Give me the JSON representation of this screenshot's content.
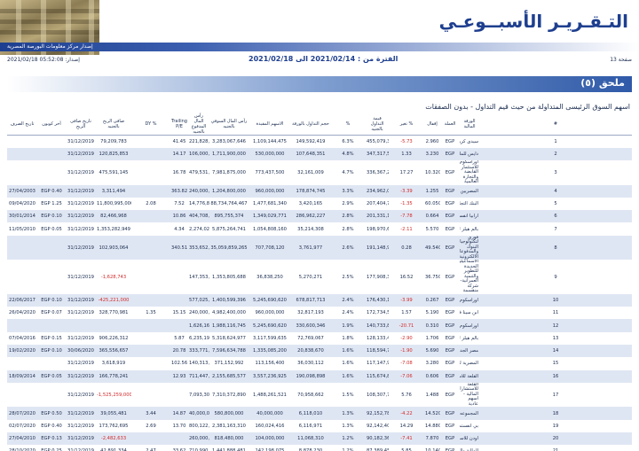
{
  "header": {
    "title": "التـقـريـر الأسبــوعـي",
    "subtitle": "إصدار مركز معلومات البورصة المصرية"
  },
  "meta": {
    "page_label": "صفحة 13",
    "period": "الفترة من : 2021/02/14 الى 2021/02/18",
    "issued": "إصدار: 05:52:08 2021/02/18"
  },
  "section": {
    "title": "ملحق (٥)"
  },
  "table": {
    "title": "اسهم السوق الرئيسى المتداولة من حيث قيم التداول - بدون الصفقات",
    "headers": [
      "#",
      "الورقة المالية",
      "العملة",
      "إقفال",
      "تغير %",
      "قيمة التداول بالجنيه",
      "%",
      "حجم التداول بالورقة",
      "الاسهم المقيدة",
      "رأس المال السوقي بالجنيه",
      "رأس المال المدفوع بالجنيه",
      "Trailing P/E",
      "DY %",
      "صافى الربح بالجنيه",
      "تاريخ صافى الربح",
      "أخر كوبون",
      "تاريخ الصرف"
    ],
    "rows": [
      [
        "1",
        "سيدى كرير للبتروكيماويات",
        "EGP",
        "2.960",
        "-5.73",
        "455,079,335",
        "6.3%",
        "149,592,419",
        "1,109,144,475",
        "3,283,067,646",
        "221,828,895",
        "41.45",
        "",
        "79,209,783",
        "31/12/2019",
        "",
        ""
      ],
      [
        "2",
        "دايس للملابس الجاهزة",
        "EGP",
        "3.230",
        "1.33",
        "347,317,567",
        "4.8%",
        "107,648,351",
        "530,000,000",
        "1,711,900,000",
        "106,000,000",
        "14.17",
        "",
        "120,825,853",
        "31/12/2019",
        "",
        ""
      ],
      [
        "3",
        "اوراسكوم للاستثمار القابضة والتجارة العالمية",
        "EGP",
        "10.320",
        "17.27",
        "336,367,225",
        "4.7%",
        "32,161,009",
        "773,437,500",
        "7,981,875,000",
        "479,531,250",
        "16.78",
        "",
        "475,591,145",
        "31/12/2019",
        "",
        ""
      ],
      [
        "4",
        "المصريين للاسكان والتنمية والتعمير",
        "EGP",
        "1.255",
        "-3.39",
        "234,962,023",
        "3.3%",
        "178,874,745",
        "960,000,000",
        "1,204,800,000",
        "240,000,000",
        "363.82",
        "",
        "3,311,494",
        "31/12/2019",
        "EGP 0.40",
        "27/04/2003"
      ],
      [
        "5",
        "البنك التجاري الدولي (مصر)",
        "EGP",
        "60.050",
        "-1.35",
        "207,404,771",
        "2.9%",
        "3,420,165",
        "1,477,681,340",
        "88,734,764,467",
        "14,776,813,400",
        "7.52",
        "2.08",
        "11,800,995,000",
        "31/12/2019",
        "EGP 1.25",
        "09/04/2020"
      ],
      [
        "6",
        "ارابيا انفستمنتس هولدنج",
        "EGP",
        "0.664",
        "-7.78",
        "201,331,175",
        "2.8%",
        "286,962,227",
        "1,349,029,771",
        "895,755,374",
        "404,708,753",
        "10.86",
        "",
        "82,466,968",
        "31/12/2019",
        "EGP 0.10",
        "30/01/2014"
      ],
      [
        "7",
        "بالم هيلز للتعمير",
        "EGP",
        "5.570",
        "-2.11",
        "198,970,632",
        "2.8%",
        "35,214,308",
        "1,054,808,160",
        "5,875,264,741",
        "2,274,025,400",
        "4.34",
        "",
        "1,353,282,949",
        "31/12/2019",
        "EGP 0.05",
        "11/05/2010"
      ],
      [
        "8",
        "فوري لتكنولوجيا البنوك والمدفوعات الالكترونية",
        "EGP",
        "49.540",
        "0.28",
        "191,148,914",
        "2.6%",
        "3,761,977",
        "707,708,120",
        "35,059,859,265",
        "353,652,060",
        "340.51",
        "",
        "102,903,064",
        "31/12/2019",
        "",
        ""
      ],
      [
        "9",
        "الاسماعيلية الجديدة للتطوير والتنمية العمرانية-شركة منقسمة",
        "EGP",
        "36.750",
        "16.52",
        "177,908,340",
        "2.5%",
        "5,270,271",
        "36,838,250",
        "1,353,805,688",
        "147,353,000",
        "",
        "",
        "-1,628,743",
        "31/12/2019",
        "",
        ""
      ],
      [
        "10",
        "اوراسكوم للاستثمار القابضة",
        "EGP",
        "0.267",
        "-3.99",
        "176,430,149",
        "2.4%",
        "678,817,713",
        "5,245,690,620",
        "1,400,599,396",
        "577,025,968",
        "",
        "",
        "-425,221,000",
        "31/12/2019",
        "EGP 0.10",
        "22/06/2017"
      ],
      [
        "11",
        "ابن سينا فارما",
        "EGP",
        "5.190",
        "1.57",
        "172,734,574",
        "2.4%",
        "32,817,193",
        "960,000,000",
        "4,982,400,000",
        "240,000,000",
        "15.15",
        "1.35",
        "328,770,981",
        "31/12/2019",
        "EGP 0.07",
        "26/04/2020"
      ],
      [
        "12",
        "اوراسكوم المالية القابضة",
        "EGP",
        "0.310",
        "-20.71",
        "140,733,848",
        "1.9%",
        "330,600,346",
        "5,245,690,620",
        "1,988,116,745",
        "1,626,164,092",
        "",
        "",
        "",
        "",
        "",
        ""
      ],
      [
        "13",
        "بالم هيلز للتعمير",
        "EGP",
        "1.706",
        "-2.90",
        "128,133,406",
        "1.8%",
        "72,769,067",
        "3,117,599,635",
        "5,318,624,977",
        "6,235,199,270",
        "5.87",
        "",
        "906,226,312",
        "31/12/2019",
        "EGP 0.15",
        "07/04/2016"
      ],
      [
        "14",
        "مصر الجديدة للاسكان والتعمير",
        "EGP",
        "5.690",
        "-1.90",
        "118,594,729",
        "1.6%",
        "20,838,670",
        "1,335,085,200",
        "7,596,634,788",
        "333,771,300",
        "20.78",
        "",
        "365,556,657",
        "30/06/2020",
        "EGP 0.10",
        "19/02/2020"
      ],
      [
        "15",
        "المصرية للمنتجعات السياحية",
        "EGP",
        "3.280",
        "-7.08",
        "117,147,908",
        "1.6%",
        "36,030,112",
        "113,156,400",
        "371,152,992",
        "140,313,936",
        "102.56",
        "",
        "3,618,919",
        "31/12/2019",
        "",
        ""
      ],
      [
        "16",
        "القلعة للاستشارات المالية",
        "EGP",
        "0.606",
        "-7.06",
        "115,674,829",
        "1.6%",
        "190,098,898",
        "3,557,236,925",
        "2,155,685,577",
        "711,447,385",
        "12.93",
        "",
        "166,778,241",
        "31/12/2019",
        "EGP 0.05",
        "18/09/2014"
      ],
      [
        "17",
        "القلعة للاستشارات المالية - اسهم عادية",
        "EGP",
        "1.488",
        "5.76",
        "108,307,796",
        "1.5%",
        "70,958,662",
        "1,488,261,521",
        "7,310,372,890",
        "7,093,306,755",
        "",
        "",
        "-1,525,259,000",
        "31/12/2019",
        "",
        ""
      ],
      [
        "18",
        "المجموعه المصرية العقارية",
        "EGP",
        "14.520",
        "-4.22",
        "92,152,784",
        "1.3%",
        "6,118,010",
        "40,000,000",
        "580,800,000",
        "40,000,000",
        "14.87",
        "3.44",
        "39,055,481",
        "31/12/2019",
        "EGP 0.50",
        "28/07/2020"
      ],
      [
        "19",
        "بي انفستمنتس القابضة",
        "EGP",
        "14.880",
        "14.29",
        "92,142,406",
        "1.3%",
        "6,116,971",
        "160,024,416",
        "2,381,163,310",
        "800,122,080",
        "13.70",
        "2.69",
        "173,762,695",
        "31/12/2019",
        "EGP 0.40",
        "02/07/2020"
      ],
      [
        "20",
        "اودن للاستثمارات المالية",
        "EGP",
        "7.870",
        "-7.41",
        "90,182,366",
        "1.2%",
        "11,068,310",
        "104,000,000",
        "818,480,000",
        "260,000,000",
        "",
        "",
        "-2,482,633",
        "31/12/2019",
        "EGP 0.13",
        "27/04/2010"
      ],
      [
        "21",
        "المالية والصناعية المصرية",
        "EGP",
        "10.140",
        "5.85",
        "87,389,457",
        "1.2%",
        "8,878,230",
        "142,198,075",
        "1,441,888,481",
        "710,990,375",
        "33.62",
        "2.47",
        "42,891,334",
        "31/12/2019",
        "EGP 0.25",
        "28/10/2020"
      ]
    ]
  }
}
